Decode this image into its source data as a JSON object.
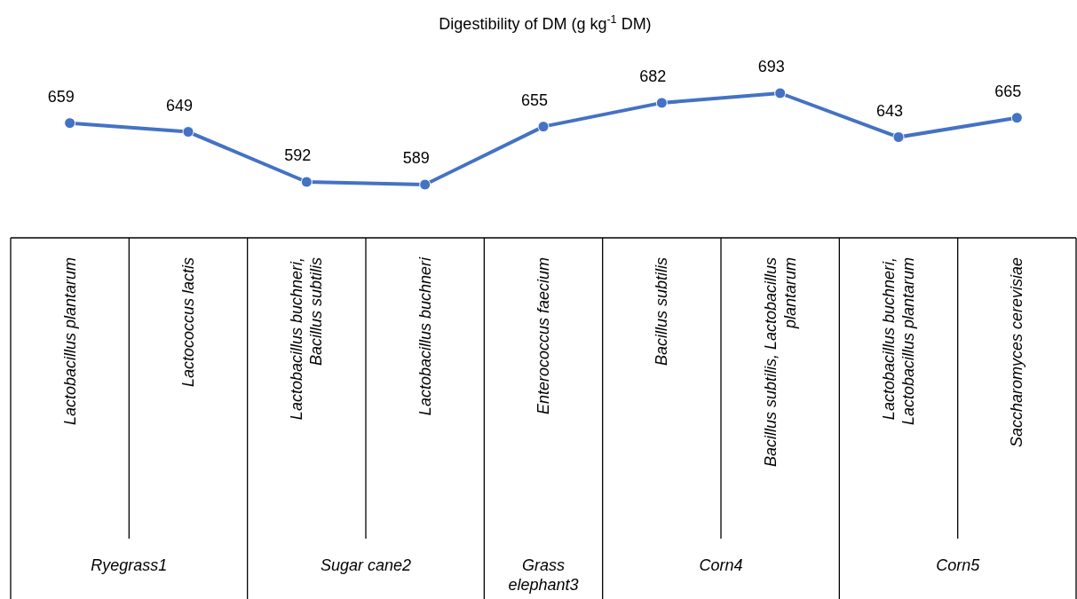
{
  "chart_data": {
    "type": "line",
    "title": "Digestibility of DM (g kg$^{-1}$  DM)",
    "categories": [
      "Lactobacillus plantarum",
      "Lactococcus lactis",
      "Lactobacillus buchneri, Bacillus subtilis",
      "Lactobacillus buchneri",
      "Enterococcus faecium",
      "Bacillus subtilis",
      "Bacillus subtilis, Lactobacillus plantarum",
      "Lactobacillus buchneri, Lactobacillus plantarum",
      "Saccharomyces cerevisiae"
    ],
    "series": [
      {
        "color": "#4472c4",
        "values": [
          659,
          649,
          592,
          589,
          655,
          682,
          693,
          643,
          665
        ]
      }
    ],
    "data_labels": true,
    "marker": "circle",
    "annotations": [
      "Ryegrass1",
      "Sugar cane2",
      "Grass elephant3",
      "Corn4",
      "Corn5"
    ]
  }
}
